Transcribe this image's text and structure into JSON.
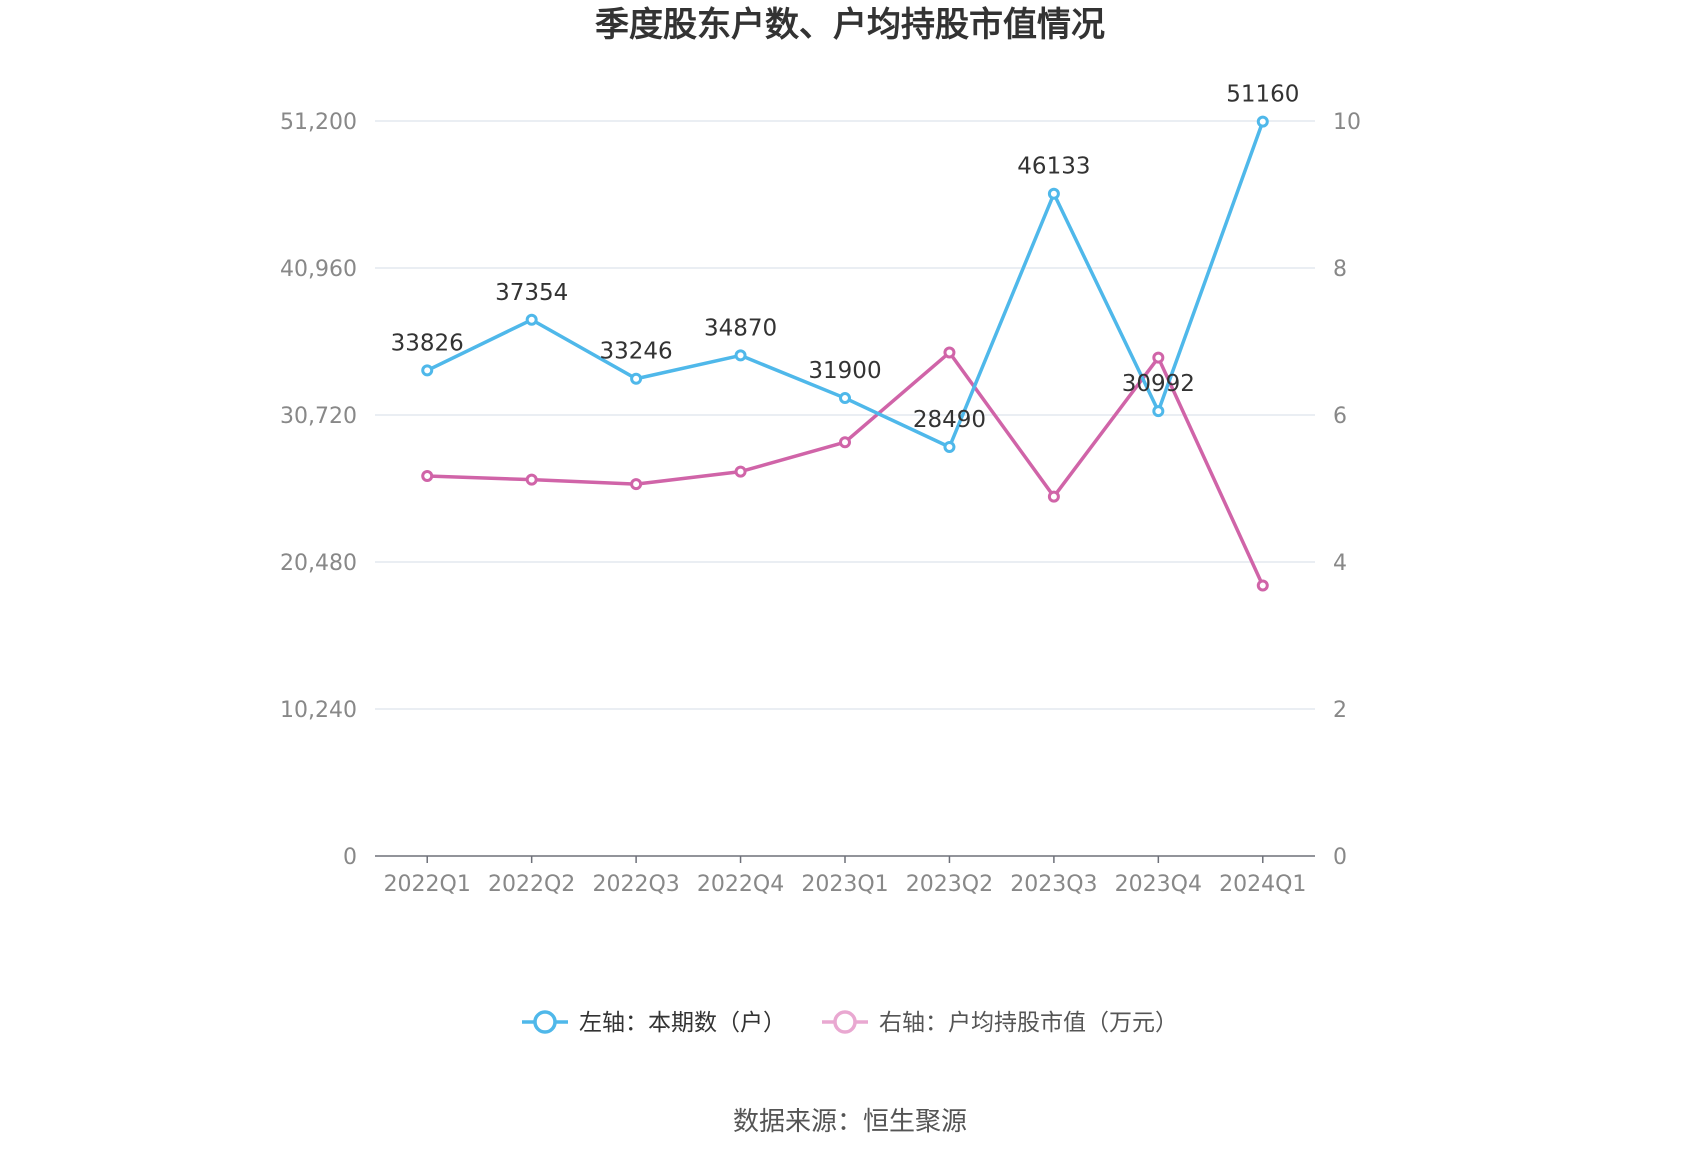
{
  "chart_data": {
    "type": "line",
    "title": "季度股东户数、户均持股市值情况",
    "categories": [
      "2022Q1",
      "2022Q2",
      "2022Q3",
      "2022Q4",
      "2023Q1",
      "2023Q2",
      "2023Q3",
      "2023Q4",
      "2024Q1"
    ],
    "left_axis": {
      "ticks": [
        "0",
        "10,240",
        "20,480",
        "30,720",
        "40,960",
        "51,200"
      ],
      "ylim": [
        0,
        51200
      ]
    },
    "right_axis": {
      "ticks": [
        "0",
        "2",
        "4",
        "6",
        "8",
        "10"
      ],
      "ylim": [
        0,
        10
      ]
    },
    "grid": true,
    "legend_position": "bottom",
    "series": [
      {
        "name": "左轴：本期数（户）",
        "axis": "left",
        "color": "#4fb8ea",
        "values": [
          33826,
          37354,
          33246,
          34870,
          31900,
          28490,
          46133,
          30992,
          51160
        ],
        "labels": [
          "33826",
          "37354",
          "33246",
          "34870",
          "31900",
          "28490",
          "46133",
          "30992",
          "51160"
        ]
      },
      {
        "name": "右轴：户均持股市值（万元）",
        "axis": "right",
        "color": "#d064a8",
        "values": [
          5.17,
          5.12,
          5.06,
          5.23,
          5.63,
          6.85,
          4.89,
          6.78,
          3.68
        ]
      }
    ]
  },
  "source": "数据来源：恒生聚源"
}
